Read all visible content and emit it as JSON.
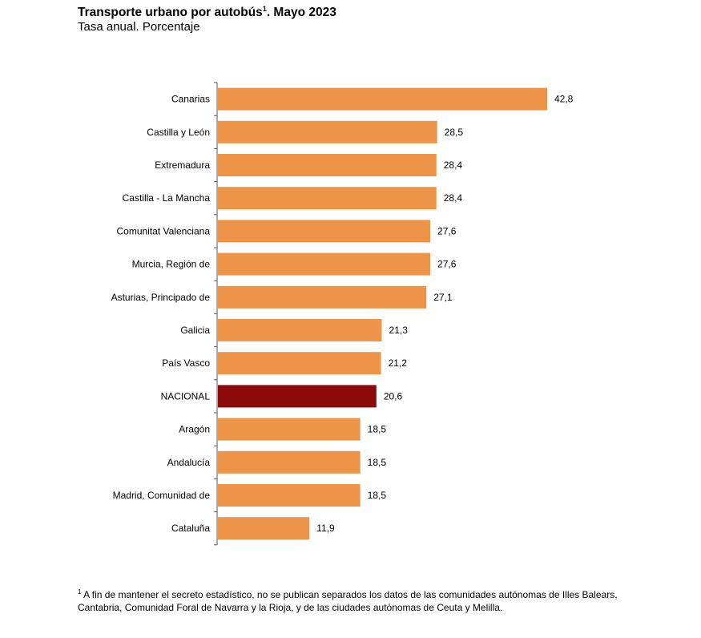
{
  "title_main": "Transporte urbano por autobús",
  "title_sup": "1",
  "title_end": ". Mayo 2023",
  "subtitle": "Tasa anual. Porcentaje",
  "footnote_sup": "1",
  "footnote_text": " A fin de mantener el secreto estadístico, no se publican separados los datos de las comunidades autónomas de Illes Balears, Cantabria, Comunidad Foral de Navarra y la Rioja, y de las ciudades autónomas de Ceuta y Melilla.",
  "colors": {
    "bar": "#ee9448",
    "highlight": "#8b0a0a",
    "axis": "#555555"
  },
  "chart_data": {
    "type": "bar",
    "orientation": "horizontal",
    "title": "Transporte urbano por autobús1. Mayo 2023",
    "subtitle": "Tasa anual. Porcentaje",
    "categories": [
      "Canarias",
      "Castilla y León",
      "Extremadura",
      "Castilla - La Mancha",
      "Comunitat Valenciana",
      "Murcia, Región de",
      "Asturias, Principado de",
      "Galicia",
      "País Vasco",
      "NACIONAL",
      "Aragón",
      "Andalucía",
      "Madrid, Comunidad de",
      "Cataluña"
    ],
    "values": [
      42.8,
      28.5,
      28.4,
      28.4,
      27.6,
      27.6,
      27.1,
      21.3,
      21.2,
      20.6,
      18.5,
      18.5,
      18.5,
      11.9
    ],
    "value_labels": [
      "42,8",
      "28,5",
      "28,4",
      "28,4",
      "27,6",
      "27,6",
      "27,1",
      "21,3",
      "21,2",
      "20,6",
      "18,5",
      "18,5",
      "18,5",
      "11,9"
    ],
    "highlight_category": "NACIONAL",
    "xlim": [
      0,
      42.8
    ],
    "grid": false,
    "legend": "none"
  }
}
